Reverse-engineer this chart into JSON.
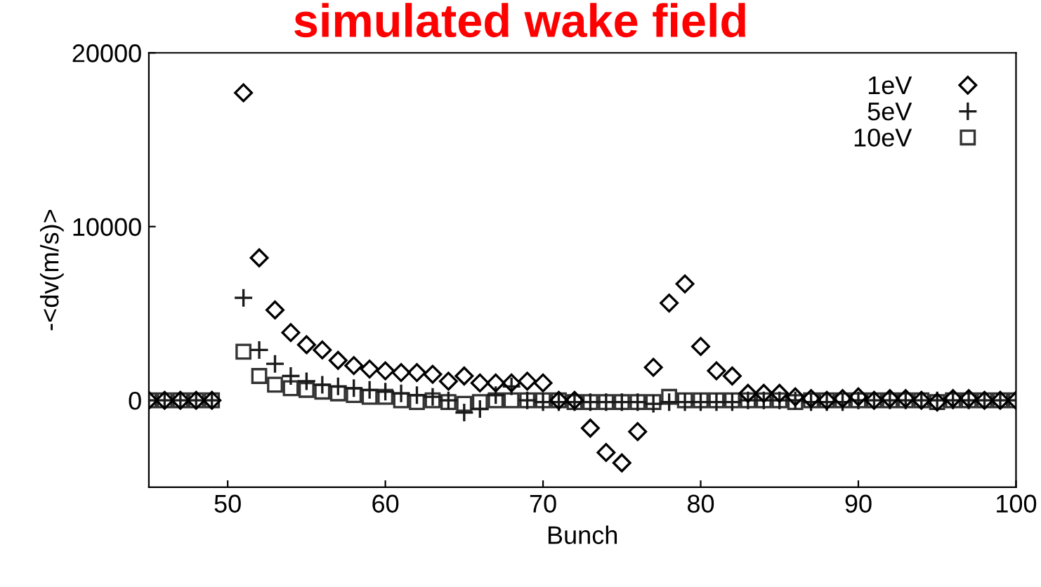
{
  "chart_data": {
    "type": "scatter",
    "title": "simulated wake field",
    "xlabel": "Bunch",
    "ylabel": "-<dv(m/s)>",
    "x": [
      45,
      46,
      47,
      48,
      49,
      50,
      51,
      52,
      53,
      54,
      55,
      56,
      57,
      58,
      59,
      60,
      61,
      62,
      63,
      64,
      65,
      66,
      67,
      68,
      69,
      70,
      71,
      72,
      73,
      74,
      75,
      76,
      77,
      78,
      79,
      80,
      81,
      82,
      83,
      84,
      85,
      86,
      87,
      88,
      89,
      90,
      91,
      92,
      93,
      94,
      95,
      96,
      97,
      98,
      99,
      100
    ],
    "series": [
      {
        "name": "1eV",
        "color": "#000000",
        "marker": "diamond",
        "values": [
          0,
          0,
          0,
          0,
          0,
          null,
          17700,
          8200,
          5200,
          3900,
          3200,
          2900,
          2300,
          2000,
          1800,
          1700,
          1600,
          1600,
          1500,
          1100,
          1400,
          1000,
          1000,
          1000,
          1100,
          1000,
          0,
          0,
          -1600,
          -3000,
          -3600,
          -1800,
          1900,
          5600,
          6700,
          3100,
          1700,
          1400,
          400,
          400,
          400,
          200,
          100,
          0,
          100,
          200,
          0,
          100,
          100,
          0,
          -100,
          100,
          100,
          0,
          0,
          0
        ]
      },
      {
        "name": "5eV",
        "color": "#1a1a1a",
        "marker": "cross",
        "values": [
          0,
          0,
          0,
          0,
          0,
          null,
          5900,
          2900,
          2100,
          1400,
          1100,
          900,
          800,
          700,
          600,
          500,
          400,
          300,
          200,
          0,
          -700,
          -500,
          300,
          800,
          0,
          -100,
          -100,
          -100,
          -100,
          -100,
          -100,
          -100,
          -200,
          -100,
          -100,
          -100,
          -100,
          -100,
          0,
          0,
          0,
          0,
          -100,
          -100,
          -100,
          0,
          0,
          0,
          0,
          0,
          0,
          0,
          0,
          0,
          0,
          0
        ]
      },
      {
        "name": "10eV",
        "color": "#333333",
        "marker": "square",
        "values": [
          0,
          0,
          0,
          0,
          0,
          null,
          2800,
          1400,
          900,
          700,
          600,
          500,
          400,
          300,
          200,
          200,
          0,
          -100,
          0,
          -100,
          -200,
          -100,
          0,
          0,
          0,
          0,
          0,
          -100,
          -100,
          -100,
          -100,
          -100,
          -100,
          200,
          0,
          0,
          0,
          0,
          0,
          0,
          0,
          -100,
          0,
          0,
          0,
          0,
          0,
          0,
          0,
          0,
          -100,
          0,
          0,
          0,
          0,
          0
        ]
      }
    ],
    "xlim": [
      45,
      100
    ],
    "xticks": [
      50,
      60,
      70,
      80,
      90,
      100
    ],
    "ylim": [
      -5000,
      20000
    ],
    "yticks": [
      0,
      10000,
      20000
    ],
    "legend": "top right",
    "grid": false
  }
}
